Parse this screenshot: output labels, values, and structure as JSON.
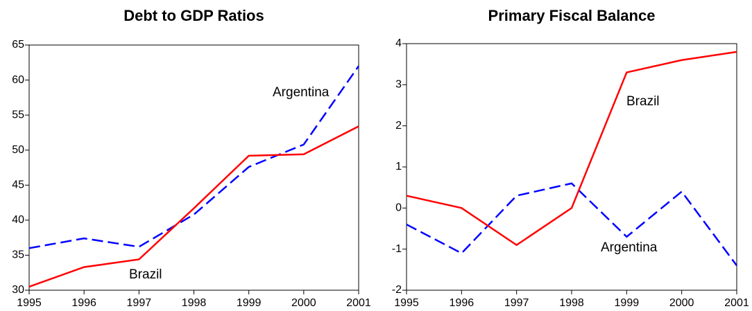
{
  "chart_data": [
    {
      "type": "line",
      "title": "Debt to GDP Ratios",
      "x": [
        1995,
        1996,
        1997,
        1998,
        1999,
        2000,
        2001
      ],
      "xlim": [
        1995,
        2001
      ],
      "xticks": [
        1995,
        1996,
        1997,
        1998,
        1999,
        2000,
        2001
      ],
      "ylim": [
        30,
        65
      ],
      "yticks": [
        30,
        35,
        40,
        45,
        50,
        55,
        60,
        65
      ],
      "series": [
        {
          "name": "Argentina",
          "color": "#0000ff",
          "dash": "dashed",
          "values": [
            36.0,
            37.4,
            36.2,
            40.8,
            47.6,
            50.8,
            62.0
          ]
        },
        {
          "name": "Brazil",
          "color": "#ff0000",
          "dash": "solid",
          "values": [
            30.5,
            33.3,
            34.4,
            41.7,
            49.2,
            49.4,
            53.4
          ]
        }
      ]
    },
    {
      "type": "line",
      "title": "Primary Fiscal Balance",
      "x": [
        1995,
        1996,
        1997,
        1998,
        1999,
        2000,
        2001
      ],
      "xlim": [
        1995,
        2001
      ],
      "xticks": [
        1995,
        1996,
        1997,
        1998,
        1999,
        2000,
        2001
      ],
      "ylim": [
        -2,
        4
      ],
      "yticks": [
        -2,
        -1,
        0,
        1,
        2,
        3,
        4
      ],
      "series": [
        {
          "name": "Argentina",
          "color": "#0000ff",
          "dash": "dashed",
          "values": [
            -0.4,
            -1.1,
            0.3,
            0.6,
            -0.7,
            0.4,
            -1.4
          ]
        },
        {
          "name": "Brazil",
          "color": "#ff0000",
          "dash": "solid",
          "values": [
            0.3,
            0.0,
            -0.9,
            0.0,
            3.3,
            3.6,
            3.8
          ]
        }
      ]
    }
  ]
}
